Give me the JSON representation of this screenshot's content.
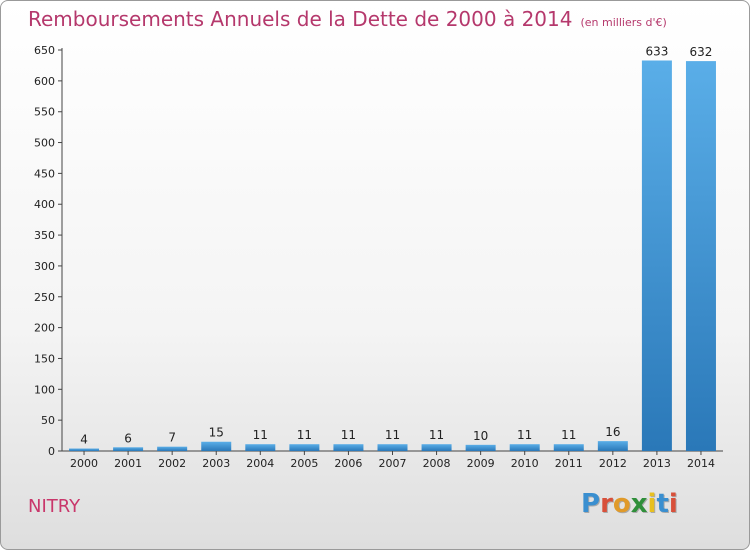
{
  "header": {
    "title": "Remboursements Annuels de la Dette de 2000 à 2014",
    "subtitle": "(en milliers d'€)"
  },
  "footer": {
    "town": "NITRY",
    "logo": "Proxiti"
  },
  "colors": {
    "title": "#b5386c",
    "bar_top": "#5aaee8",
    "bar_bottom": "#2a78b8",
    "logo_letters": [
      "#3a8fd0",
      "#d8503a",
      "#e09a2a",
      "#2f8f3a",
      "#e8c020",
      "#3a8fd0",
      "#d8503a"
    ]
  },
  "chart_data": {
    "type": "bar",
    "categories": [
      "2000",
      "2001",
      "2002",
      "2003",
      "2004",
      "2005",
      "2006",
      "2007",
      "2008",
      "2009",
      "2010",
      "2011",
      "2012",
      "2013",
      "2014"
    ],
    "values": [
      4,
      6,
      7,
      15,
      11,
      11,
      11,
      11,
      11,
      10,
      11,
      11,
      16,
      633,
      632
    ],
    "title": "Remboursements Annuels de la Dette de 2000 à 2014",
    "xlabel": "",
    "ylabel": "",
    "ylim": [
      0,
      650
    ],
    "yticks": [
      0,
      50,
      100,
      150,
      200,
      250,
      300,
      350,
      400,
      450,
      500,
      550,
      600,
      650
    ],
    "grid": false,
    "legend": "none"
  }
}
